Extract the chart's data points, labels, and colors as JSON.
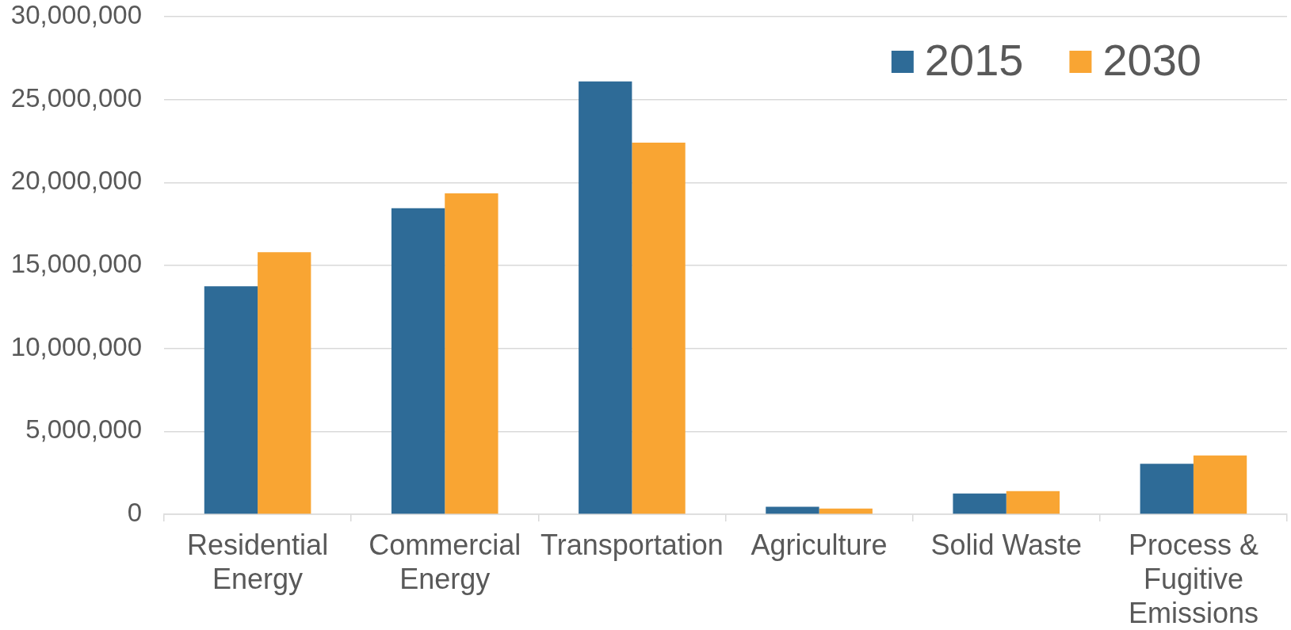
{
  "chart_data": {
    "type": "bar",
    "categories": [
      "Residential Energy",
      "Commercial Energy",
      "Transportation",
      "Agriculture",
      "Solid Waste",
      "Process & Fugitive Emissions"
    ],
    "series": [
      {
        "name": "2015",
        "color": "#2e6b97",
        "values": [
          13750000,
          18450000,
          26100000,
          450000,
          1250000,
          3050000
        ]
      },
      {
        "name": "2030",
        "color": "#f9a533",
        "values": [
          15800000,
          19350000,
          22400000,
          350000,
          1400000,
          3550000
        ]
      }
    ],
    "ylim": [
      0,
      30000000
    ],
    "yticks": [
      0,
      {
        "value": 5000000,
        "label": "5,000,000"
      },
      {
        "value": 10000000,
        "label": "10,000,000"
      },
      {
        "value": 15000000,
        "label": "15,000,000"
      },
      {
        "value": 20000000,
        "label": "20,000,000"
      },
      {
        "value": 25000000,
        "label": "25,000,000"
      },
      {
        "value": 30000000,
        "label": "30,000,000"
      }
    ],
    "grid": "y",
    "legend": "top right"
  }
}
